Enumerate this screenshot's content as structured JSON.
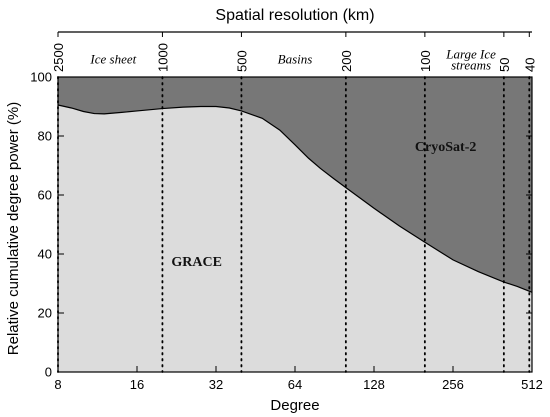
{
  "chart_data": {
    "type": "area",
    "xlabel": "Degree",
    "ylabel": "Relative cumulative degree power (%)",
    "x_scale": "log2",
    "x_range": [
      8,
      512
    ],
    "ylim": [
      0,
      100
    ],
    "x_ticks": [
      {
        "value": 8,
        "label": "8"
      },
      {
        "value": 16,
        "label": "16"
      },
      {
        "value": 32,
        "label": "32"
      },
      {
        "value": 64,
        "label": "64"
      },
      {
        "value": 128,
        "label": "128"
      },
      {
        "value": 256,
        "label": "256"
      },
      {
        "value": 512,
        "label": "512"
      }
    ],
    "y_ticks": [
      0,
      20,
      40,
      60,
      80,
      100
    ],
    "top_axis": {
      "label": "Spatial resolution (km)",
      "ticks": [
        {
          "label": "2500",
          "degree": 8
        },
        {
          "label": "1000",
          "degree": 20
        },
        {
          "label": "500",
          "degree": 40
        },
        {
          "label": "200",
          "degree": 100
        },
        {
          "label": "100",
          "degree": 200
        },
        {
          "label": "50",
          "degree": 400
        },
        {
          "label": "40",
          "degree": 500
        }
      ]
    },
    "region_labels": [
      {
        "text": "Ice sheet",
        "degree": 13,
        "value": 104.5
      },
      {
        "text": "Basins",
        "degree": 64,
        "value": 104.5
      },
      {
        "text": "Large Ice",
        "degree": 300,
        "value": 106.3
      },
      {
        "text": "streams",
        "degree": 300,
        "value": 102.6
      }
    ],
    "series": [
      {
        "name": "GRACE",
        "fill": "#dcdcdc",
        "label_degree": 27,
        "label_value": 36,
        "x": [
          8,
          9,
          10,
          11,
          12,
          14,
          16,
          20,
          24,
          28,
          32,
          36,
          40,
          48,
          56,
          64,
          72,
          80,
          90,
          100,
          128,
          160,
          200,
          256,
          320,
          400,
          450,
          512
        ],
        "y": [
          90.5,
          89.5,
          88.3,
          87.6,
          87.5,
          88.0,
          88.5,
          89.3,
          89.8,
          90.0,
          90.0,
          89.5,
          88.5,
          86.0,
          82.0,
          77.0,
          72.5,
          69.0,
          65.5,
          62.5,
          55.5,
          49.5,
          44.0,
          38.0,
          34.0,
          30.5,
          29.0,
          27.0
        ]
      },
      {
        "name": "CryoSat-2",
        "fill": "#777777",
        "label_degree": 240,
        "label_value": 75,
        "upper": 100
      }
    ],
    "grid": false
  }
}
